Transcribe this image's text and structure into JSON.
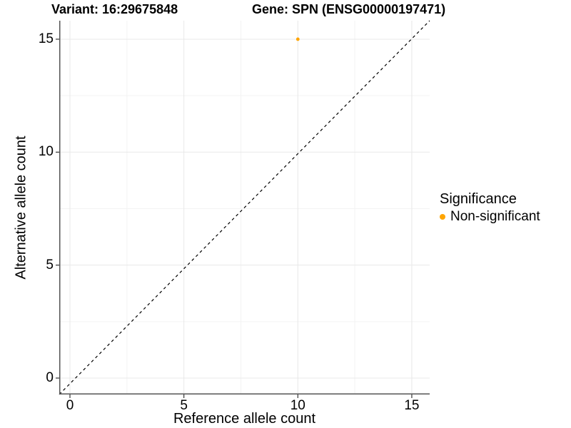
{
  "chart_data": {
    "type": "scatter",
    "titles": {
      "variant": "Variant: 16:29675848",
      "gene": "Gene: SPN (ENSG00000197471)"
    },
    "xlabel": "Reference allele count",
    "ylabel": "Alternative allele count",
    "xlim": [
      -0.5,
      15.8
    ],
    "ylim": [
      -0.7,
      15.8
    ],
    "x_ticks": [
      0,
      5,
      10,
      15
    ],
    "x_tick_labels": [
      "0",
      "5",
      "10",
      "15"
    ],
    "x_minor_ticks": [
      2.5,
      7.5,
      12.5
    ],
    "y_ticks": [
      0,
      5,
      10,
      15
    ],
    "y_tick_labels": [
      "0",
      "5",
      "10",
      "15"
    ],
    "y_minor_ticks": [
      2.5,
      7.5,
      12.5
    ],
    "points": [
      {
        "x": 10,
        "y": 15,
        "series": "Non-significant",
        "color": "#FFA500"
      }
    ],
    "identity_line": {
      "equation": "y = x",
      "style": "dashed",
      "color": "#000000"
    },
    "legend": {
      "title": "Significance",
      "position": "right",
      "entries": [
        {
          "label": "Non-significant",
          "color": "#FFA500",
          "marker": "circle"
        }
      ]
    },
    "style": {
      "background": "#FFFFFF",
      "grid_major_color": "#E8E8E8",
      "grid_minor_color": "#F3F3F3",
      "axis_line_color": "#555555",
      "tick_color": "#333333",
      "text_color": "#000000"
    }
  }
}
